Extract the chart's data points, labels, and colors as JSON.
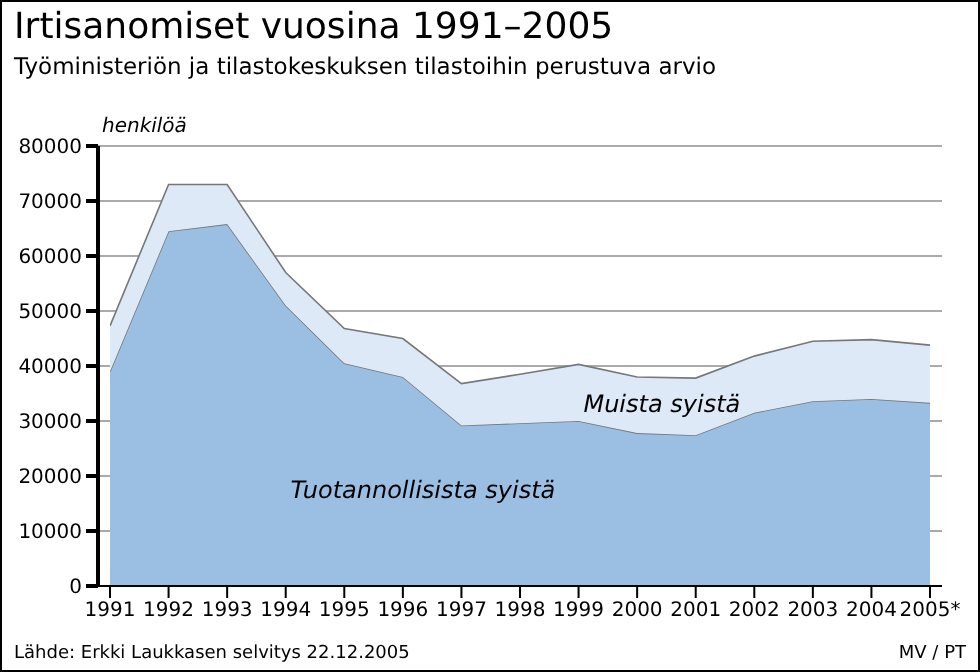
{
  "chart_data": {
    "type": "area",
    "stacked": true,
    "title": "Irtisanomiset vuosina 1991–2005",
    "subtitle": "Työministeriön ja tilastokeskuksen tilastoihin perustuva arvio",
    "ylabel": "henkilöä",
    "categories": [
      "1991",
      "1992",
      "1993",
      "1994",
      "1995",
      "1996",
      "1997",
      "1998",
      "1999",
      "2000",
      "2001",
      "2002",
      "2003",
      "2004",
      "2005*"
    ],
    "series": [
      {
        "name": "Tuotannollisista syistä",
        "color": "#9bbfe3",
        "values": [
          39000,
          64500,
          65800,
          51000,
          40500,
          38000,
          29200,
          29600,
          30000,
          27800,
          27400,
          31500,
          33600,
          34000,
          33300
        ]
      },
      {
        "name": "Muista syistä",
        "color": "#dde9f6",
        "values": [
          8300,
          8500,
          7200,
          6000,
          6300,
          7000,
          7600,
          8900,
          10300,
          10200,
          10400,
          10300,
          10900,
          10800,
          10500
        ]
      }
    ],
    "ylim": [
      0,
      80000
    ],
    "yticks": [
      0,
      10000,
      20000,
      30000,
      40000,
      50000,
      60000,
      70000,
      80000
    ],
    "grid": "y",
    "legend": false,
    "annotations": [
      "Lähde: Erkki Laukkasen selvitys 22.12.2005",
      "MV / PT"
    ]
  }
}
